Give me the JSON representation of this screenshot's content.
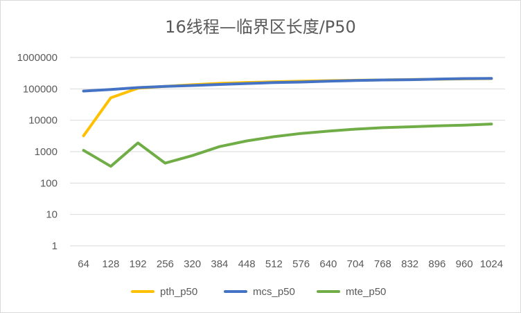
{
  "chart_data": {
    "type": "line",
    "title": "16线程—临界区长度/P50",
    "xlabel": "",
    "ylabel": "",
    "yscale": "log",
    "ylim": [
      1,
      1000000
    ],
    "y_tick_labels": [
      "1",
      "10",
      "100",
      "1000",
      "10000",
      "100000",
      "1000000"
    ],
    "categories": [
      "64",
      "128",
      "192",
      "256",
      "320",
      "384",
      "448",
      "512",
      "576",
      "640",
      "704",
      "768",
      "832",
      "896",
      "960",
      "1024"
    ],
    "grid": true,
    "legend_position": "bottom",
    "series": [
      {
        "name": "pth_p50",
        "color": "#FFC000",
        "values": [
          3200,
          52000,
          105000,
          120000,
          135000,
          150000,
          160000,
          168000,
          175000,
          182000,
          188000,
          192000,
          198000,
          203000,
          208000,
          212000
        ]
      },
      {
        "name": "mcs_p50",
        "color": "#4472C4",
        "values": [
          85000,
          95000,
          110000,
          120000,
          128000,
          138000,
          148000,
          158000,
          165000,
          175000,
          185000,
          192000,
          196000,
          205000,
          212000,
          215000
        ]
      },
      {
        "name": "mte_p50",
        "color": "#70AD47",
        "values": [
          1100,
          340,
          1900,
          430,
          750,
          1450,
          2200,
          3000,
          3800,
          4500,
          5200,
          5800,
          6200,
          6600,
          7000,
          7600
        ]
      }
    ]
  }
}
